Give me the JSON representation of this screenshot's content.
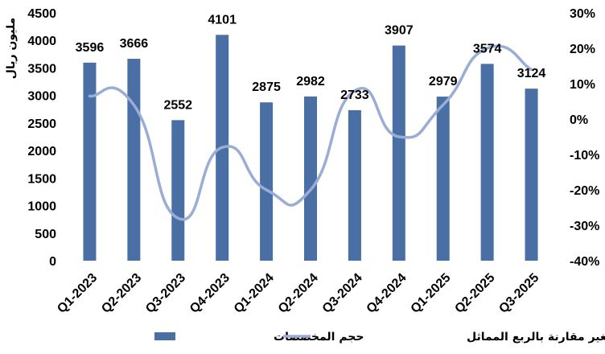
{
  "chart_data": {
    "type": "bar",
    "categories": [
      "Q1-2023",
      "Q2-2023",
      "Q3-2023",
      "Q4-2023",
      "Q1-2024",
      "Q2-2024",
      "Q3-2024",
      "Q4-2024",
      "Q1-2025",
      "Q2-2025",
      "Q3-2025"
    ],
    "series": [
      {
        "name": "حجم المخصصات",
        "type": "bar",
        "axis": "left",
        "color": "#4a6fa5",
        "values": [
          3596,
          3666,
          2552,
          4101,
          2875,
          2982,
          2733,
          3907,
          2979,
          3574,
          3124
        ]
      },
      {
        "name": "التغير مقارنة بالربع المماثل",
        "type": "line",
        "axis": "right",
        "color": "#9aadd4",
        "smooth": true,
        "values": [
          6.5,
          4,
          -28,
          -8,
          -20,
          -20,
          8,
          -5,
          4,
          20,
          14
        ]
      }
    ],
    "ylabel": "مليون ريال",
    "ylim": [
      0,
      4500
    ],
    "yticks": [
      0,
      500,
      1000,
      1500,
      2000,
      2500,
      3000,
      3500,
      4000,
      4500
    ],
    "y2lim": [
      -40,
      30
    ],
    "y2ticks": [
      "-40%",
      "-30%",
      "-20%",
      "-10%",
      "0%",
      "10%",
      "20%",
      "30%"
    ],
    "legend_position": "bottom",
    "grid": false
  }
}
